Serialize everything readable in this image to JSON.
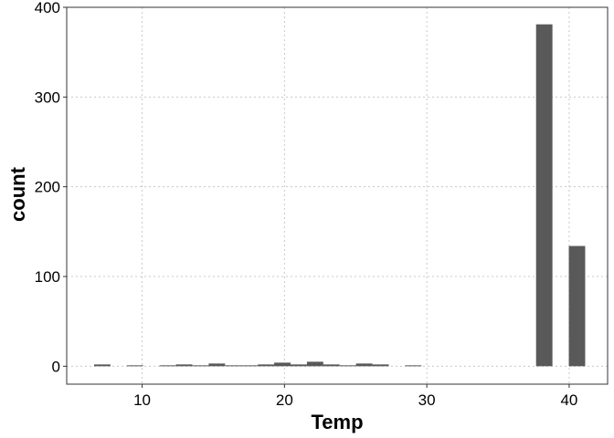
{
  "chart_data": {
    "type": "bar",
    "title": "",
    "xlabel": "Temp",
    "ylabel": "count",
    "xlim": [
      4.7,
      42.7
    ],
    "ylim": [
      -20,
      400
    ],
    "xticks": [
      10,
      20,
      30,
      40
    ],
    "yticks": [
      0,
      100,
      200,
      300,
      400
    ],
    "bin_width": 1.15,
    "grid": true,
    "bar_color": "#595959",
    "bins": [
      {
        "x": 7.2,
        "count": 2
      },
      {
        "x": 9.5,
        "count": 1
      },
      {
        "x": 11.8,
        "count": 1
      },
      {
        "x": 12.95,
        "count": 2
      },
      {
        "x": 14.1,
        "count": 1
      },
      {
        "x": 15.25,
        "count": 3
      },
      {
        "x": 16.4,
        "count": 1
      },
      {
        "x": 17.55,
        "count": 1
      },
      {
        "x": 18.7,
        "count": 2
      },
      {
        "x": 19.85,
        "count": 4
      },
      {
        "x": 21.0,
        "count": 2
      },
      {
        "x": 22.15,
        "count": 5
      },
      {
        "x": 23.3,
        "count": 2
      },
      {
        "x": 24.45,
        "count": 1
      },
      {
        "x": 25.6,
        "count": 3
      },
      {
        "x": 26.75,
        "count": 2
      },
      {
        "x": 29.05,
        "count": 1
      },
      {
        "x": 38.25,
        "count": 381
      },
      {
        "x": 40.55,
        "count": 134
      }
    ]
  }
}
